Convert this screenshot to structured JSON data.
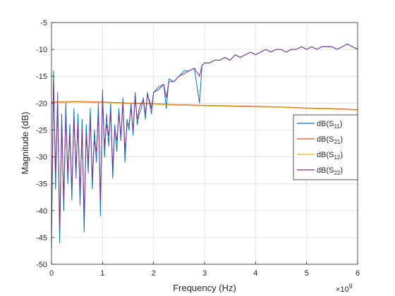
{
  "chart_data": {
    "type": "line",
    "title": "",
    "xlabel": "Frequency (Hz)",
    "ylabel": "Magnitude (dB)",
    "x_exponent_label": "×10",
    "x_exponent_power": "9",
    "xlim": [
      0,
      6
    ],
    "ylim": [
      -50,
      -5
    ],
    "x_ticks": [
      0,
      1,
      2,
      3,
      4,
      5,
      6
    ],
    "y_ticks": [
      -50,
      -45,
      -40,
      -35,
      -30,
      -25,
      -20,
      -15,
      -10,
      -5
    ],
    "grid": true,
    "legend_position": "right",
    "series": [
      {
        "name": "dB(S",
        "sub": "11",
        "color": "#0072BD",
        "x": [
          0.0,
          0.04,
          0.08,
          0.12,
          0.16,
          0.2,
          0.24,
          0.28,
          0.32,
          0.36,
          0.4,
          0.44,
          0.48,
          0.52,
          0.56,
          0.6,
          0.64,
          0.68,
          0.72,
          0.76,
          0.8,
          0.84,
          0.88,
          0.92,
          0.96,
          1.0,
          1.04,
          1.08,
          1.12,
          1.16,
          1.2,
          1.24,
          1.28,
          1.32,
          1.36,
          1.4,
          1.44,
          1.48,
          1.52,
          1.56,
          1.6,
          1.64,
          1.68,
          1.72,
          1.76,
          1.8,
          1.84,
          1.88,
          1.92,
          1.96,
          2.0,
          2.1,
          2.2,
          2.25,
          2.3,
          2.4,
          2.5,
          2.6,
          2.7,
          2.8,
          2.9,
          2.95,
          3.0,
          3.1,
          3.2,
          3.3,
          3.4,
          3.5,
          3.6,
          3.7,
          3.8,
          3.9,
          4.0,
          4.1,
          4.2,
          4.3,
          4.4,
          4.5,
          4.6,
          4.7,
          4.8,
          4.9,
          5.0,
          5.1,
          5.2,
          5.3,
          5.4,
          5.5,
          5.6,
          5.7,
          5.8,
          5.9,
          6.0
        ],
        "values": [
          -47,
          -14,
          -36,
          -18,
          -46,
          -22,
          -40,
          -20,
          -35,
          -24,
          -38,
          -21,
          -34,
          -22,
          -39,
          -23,
          -44,
          -24,
          -33,
          -21,
          -36,
          -25,
          -31,
          -20,
          -41,
          -17.5,
          -30,
          -22,
          -28,
          -20,
          -34,
          -24,
          -29,
          -21,
          -27,
          -19,
          -31,
          -23,
          -25,
          -20,
          -26,
          -18,
          -24,
          -22,
          -21,
          -19,
          -23,
          -18,
          -20,
          -22,
          -18,
          -17,
          -16.5,
          -21,
          -15.5,
          -16,
          -15,
          -14,
          -14,
          -13.5,
          -20,
          -13,
          -12.5,
          -12.5,
          -12,
          -12,
          -11.5,
          -12,
          -11,
          -11.5,
          -11,
          -10.5,
          -11,
          -10.5,
          -10,
          -10.5,
          -10,
          -10,
          -10.5,
          -10,
          -10,
          -9.5,
          -10,
          -9.5,
          -10,
          -9.5,
          -9.5,
          -9.5,
          -10,
          -9.5,
          -9,
          -9.5,
          -10
        ]
      },
      {
        "name": "dB(S",
        "sub": "21",
        "color": "#D95319",
        "x": [
          0.0,
          0.5,
          1.0,
          1.5,
          2.0,
          2.5,
          3.0,
          3.5,
          4.0,
          4.5,
          5.0,
          5.5,
          6.0
        ],
        "values": [
          -19.8,
          -19.7,
          -19.8,
          -20.0,
          -20.1,
          -20.3,
          -20.4,
          -20.5,
          -20.6,
          -20.7,
          -20.9,
          -21.0,
          -21.2
        ]
      },
      {
        "name": "dB(S",
        "sub": "12",
        "color": "#EDB120",
        "x": [
          0.0,
          0.5,
          1.0,
          1.5,
          2.0,
          2.5,
          3.0,
          3.5,
          4.0,
          4.5,
          5.0,
          5.5,
          6.0
        ],
        "values": [
          -19.9,
          -19.8,
          -19.9,
          -20.1,
          -20.2,
          -20.4,
          -20.5,
          -20.6,
          -20.7,
          -20.8,
          -21.0,
          -21.1,
          -21.3
        ]
      },
      {
        "name": "dB(S",
        "sub": "22",
        "color": "#7E2F8E",
        "x": [
          0.0,
          0.04,
          0.08,
          0.12,
          0.16,
          0.2,
          0.24,
          0.28,
          0.32,
          0.36,
          0.4,
          0.44,
          0.48,
          0.52,
          0.56,
          0.6,
          0.64,
          0.68,
          0.72,
          0.76,
          0.8,
          0.84,
          0.88,
          0.92,
          0.96,
          1.0,
          1.04,
          1.08,
          1.12,
          1.16,
          1.2,
          1.24,
          1.28,
          1.32,
          1.36,
          1.4,
          1.44,
          1.48,
          1.52,
          1.56,
          1.6,
          1.64,
          1.68,
          1.72,
          1.76,
          1.8,
          1.84,
          1.88,
          1.92,
          1.96,
          2.0,
          2.1,
          2.2,
          2.25,
          2.3,
          2.4,
          2.5,
          2.6,
          2.7,
          2.8,
          2.9,
          2.95,
          3.0,
          3.1,
          3.2,
          3.3,
          3.4,
          3.5,
          3.6,
          3.7,
          3.8,
          3.9,
          4.0,
          4.1,
          4.2,
          4.3,
          4.4,
          4.5,
          4.6,
          4.7,
          4.8,
          4.9,
          5.0,
          5.1,
          5.2,
          5.3,
          5.4,
          5.5,
          5.6,
          5.7,
          5.8,
          5.9,
          6.0
        ],
        "values": [
          -44,
          -16,
          -33,
          -20,
          -43,
          -24,
          -38,
          -22,
          -33,
          -26,
          -36,
          -23,
          -32,
          -24,
          -37,
          -25,
          -41,
          -26,
          -31,
          -23,
          -34,
          -27,
          -29,
          -22,
          -38,
          -19,
          -28,
          -24,
          -26,
          -22,
          -32,
          -25,
          -27,
          -22,
          -26,
          -20,
          -29,
          -24,
          -24,
          -21,
          -25,
          -19,
          -23,
          -21,
          -20,
          -19.5,
          -22,
          -18.5,
          -19.5,
          -21,
          -18,
          -17.5,
          -16.5,
          -19,
          -16,
          -16,
          -15,
          -14.5,
          -14,
          -13.5,
          -15,
          -13,
          -12.5,
          -12.5,
          -12,
          -12,
          -11.5,
          -12,
          -11,
          -11.5,
          -11,
          -10.5,
          -11,
          -10.5,
          -10,
          -10.5,
          -10,
          -10,
          -10.5,
          -10,
          -10,
          -9.5,
          -10,
          -9.5,
          -10,
          -9.5,
          -9.5,
          -9.5,
          -10,
          -9.5,
          -9,
          -9.5,
          -10
        ]
      }
    ]
  }
}
